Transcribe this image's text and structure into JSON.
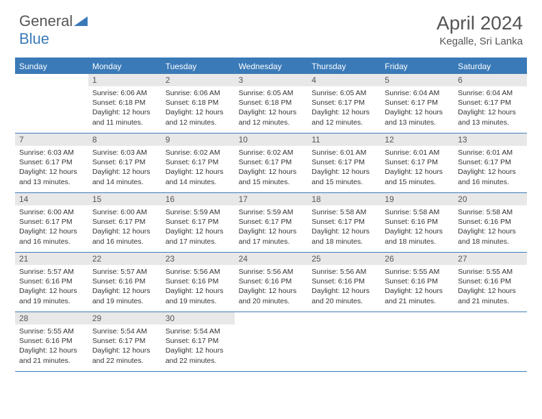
{
  "header": {
    "logo_general": "General",
    "logo_blue": "Blue",
    "month_title": "April 2024",
    "location": "Kegalle, Sri Lanka"
  },
  "colors": {
    "accent": "#3a7ab8",
    "header_bg": "#3a7ab8",
    "daynum_bg": "#e8e8e8",
    "text": "#555555",
    "body_text": "#333333"
  },
  "dow": [
    "Sunday",
    "Monday",
    "Tuesday",
    "Wednesday",
    "Thursday",
    "Friday",
    "Saturday"
  ],
  "weeks": [
    [
      {
        "day": "",
        "sunrise": "",
        "sunset": "",
        "daylight": ""
      },
      {
        "day": "1",
        "sunrise": "Sunrise: 6:06 AM",
        "sunset": "Sunset: 6:18 PM",
        "daylight": "Daylight: 12 hours and 11 minutes."
      },
      {
        "day": "2",
        "sunrise": "Sunrise: 6:06 AM",
        "sunset": "Sunset: 6:18 PM",
        "daylight": "Daylight: 12 hours and 12 minutes."
      },
      {
        "day": "3",
        "sunrise": "Sunrise: 6:05 AM",
        "sunset": "Sunset: 6:18 PM",
        "daylight": "Daylight: 12 hours and 12 minutes."
      },
      {
        "day": "4",
        "sunrise": "Sunrise: 6:05 AM",
        "sunset": "Sunset: 6:17 PM",
        "daylight": "Daylight: 12 hours and 12 minutes."
      },
      {
        "day": "5",
        "sunrise": "Sunrise: 6:04 AM",
        "sunset": "Sunset: 6:17 PM",
        "daylight": "Daylight: 12 hours and 13 minutes."
      },
      {
        "day": "6",
        "sunrise": "Sunrise: 6:04 AM",
        "sunset": "Sunset: 6:17 PM",
        "daylight": "Daylight: 12 hours and 13 minutes."
      }
    ],
    [
      {
        "day": "7",
        "sunrise": "Sunrise: 6:03 AM",
        "sunset": "Sunset: 6:17 PM",
        "daylight": "Daylight: 12 hours and 13 minutes."
      },
      {
        "day": "8",
        "sunrise": "Sunrise: 6:03 AM",
        "sunset": "Sunset: 6:17 PM",
        "daylight": "Daylight: 12 hours and 14 minutes."
      },
      {
        "day": "9",
        "sunrise": "Sunrise: 6:02 AM",
        "sunset": "Sunset: 6:17 PM",
        "daylight": "Daylight: 12 hours and 14 minutes."
      },
      {
        "day": "10",
        "sunrise": "Sunrise: 6:02 AM",
        "sunset": "Sunset: 6:17 PM",
        "daylight": "Daylight: 12 hours and 15 minutes."
      },
      {
        "day": "11",
        "sunrise": "Sunrise: 6:01 AM",
        "sunset": "Sunset: 6:17 PM",
        "daylight": "Daylight: 12 hours and 15 minutes."
      },
      {
        "day": "12",
        "sunrise": "Sunrise: 6:01 AM",
        "sunset": "Sunset: 6:17 PM",
        "daylight": "Daylight: 12 hours and 15 minutes."
      },
      {
        "day": "13",
        "sunrise": "Sunrise: 6:01 AM",
        "sunset": "Sunset: 6:17 PM",
        "daylight": "Daylight: 12 hours and 16 minutes."
      }
    ],
    [
      {
        "day": "14",
        "sunrise": "Sunrise: 6:00 AM",
        "sunset": "Sunset: 6:17 PM",
        "daylight": "Daylight: 12 hours and 16 minutes."
      },
      {
        "day": "15",
        "sunrise": "Sunrise: 6:00 AM",
        "sunset": "Sunset: 6:17 PM",
        "daylight": "Daylight: 12 hours and 16 minutes."
      },
      {
        "day": "16",
        "sunrise": "Sunrise: 5:59 AM",
        "sunset": "Sunset: 6:17 PM",
        "daylight": "Daylight: 12 hours and 17 minutes."
      },
      {
        "day": "17",
        "sunrise": "Sunrise: 5:59 AM",
        "sunset": "Sunset: 6:17 PM",
        "daylight": "Daylight: 12 hours and 17 minutes."
      },
      {
        "day": "18",
        "sunrise": "Sunrise: 5:58 AM",
        "sunset": "Sunset: 6:17 PM",
        "daylight": "Daylight: 12 hours and 18 minutes."
      },
      {
        "day": "19",
        "sunrise": "Sunrise: 5:58 AM",
        "sunset": "Sunset: 6:16 PM",
        "daylight": "Daylight: 12 hours and 18 minutes."
      },
      {
        "day": "20",
        "sunrise": "Sunrise: 5:58 AM",
        "sunset": "Sunset: 6:16 PM",
        "daylight": "Daylight: 12 hours and 18 minutes."
      }
    ],
    [
      {
        "day": "21",
        "sunrise": "Sunrise: 5:57 AM",
        "sunset": "Sunset: 6:16 PM",
        "daylight": "Daylight: 12 hours and 19 minutes."
      },
      {
        "day": "22",
        "sunrise": "Sunrise: 5:57 AM",
        "sunset": "Sunset: 6:16 PM",
        "daylight": "Daylight: 12 hours and 19 minutes."
      },
      {
        "day": "23",
        "sunrise": "Sunrise: 5:56 AM",
        "sunset": "Sunset: 6:16 PM",
        "daylight": "Daylight: 12 hours and 19 minutes."
      },
      {
        "day": "24",
        "sunrise": "Sunrise: 5:56 AM",
        "sunset": "Sunset: 6:16 PM",
        "daylight": "Daylight: 12 hours and 20 minutes."
      },
      {
        "day": "25",
        "sunrise": "Sunrise: 5:56 AM",
        "sunset": "Sunset: 6:16 PM",
        "daylight": "Daylight: 12 hours and 20 minutes."
      },
      {
        "day": "26",
        "sunrise": "Sunrise: 5:55 AM",
        "sunset": "Sunset: 6:16 PM",
        "daylight": "Daylight: 12 hours and 21 minutes."
      },
      {
        "day": "27",
        "sunrise": "Sunrise: 5:55 AM",
        "sunset": "Sunset: 6:16 PM",
        "daylight": "Daylight: 12 hours and 21 minutes."
      }
    ],
    [
      {
        "day": "28",
        "sunrise": "Sunrise: 5:55 AM",
        "sunset": "Sunset: 6:16 PM",
        "daylight": "Daylight: 12 hours and 21 minutes."
      },
      {
        "day": "29",
        "sunrise": "Sunrise: 5:54 AM",
        "sunset": "Sunset: 6:17 PM",
        "daylight": "Daylight: 12 hours and 22 minutes."
      },
      {
        "day": "30",
        "sunrise": "Sunrise: 5:54 AM",
        "sunset": "Sunset: 6:17 PM",
        "daylight": "Daylight: 12 hours and 22 minutes."
      },
      {
        "day": "",
        "sunrise": "",
        "sunset": "",
        "daylight": ""
      },
      {
        "day": "",
        "sunrise": "",
        "sunset": "",
        "daylight": ""
      },
      {
        "day": "",
        "sunrise": "",
        "sunset": "",
        "daylight": ""
      },
      {
        "day": "",
        "sunrise": "",
        "sunset": "",
        "daylight": ""
      }
    ]
  ]
}
